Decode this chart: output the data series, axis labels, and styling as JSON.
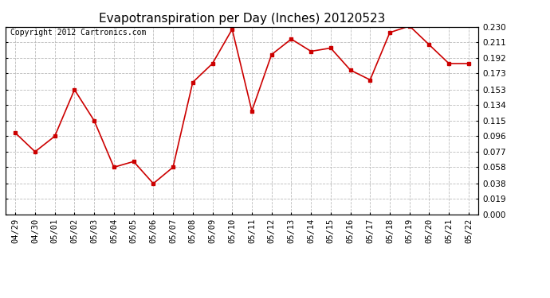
{
  "title": "Evapotranspiration per Day (Inches) 20120523",
  "copyright_text": "Copyright 2012 Cartronics.com",
  "dates": [
    "04/29",
    "04/30",
    "05/01",
    "05/02",
    "05/03",
    "05/04",
    "05/05",
    "05/06",
    "05/07",
    "05/08",
    "05/09",
    "05/10",
    "05/11",
    "05/12",
    "05/13",
    "05/14",
    "05/15",
    "05/16",
    "05/17",
    "05/18",
    "05/19",
    "05/20",
    "05/21",
    "05/22"
  ],
  "values": [
    0.1,
    0.077,
    0.096,
    0.153,
    0.115,
    0.058,
    0.065,
    0.038,
    0.058,
    0.162,
    0.185,
    0.227,
    0.127,
    0.196,
    0.215,
    0.2,
    0.204,
    0.177,
    0.165,
    0.223,
    0.231,
    0.208,
    0.185,
    0.185
  ],
  "line_color": "#cc0000",
  "marker": "s",
  "marker_size": 3,
  "marker_linewidth": 1.0,
  "ylim": [
    0.0,
    0.23
  ],
  "yticks": [
    0.0,
    0.019,
    0.038,
    0.058,
    0.077,
    0.096,
    0.115,
    0.134,
    0.153,
    0.173,
    0.192,
    0.211,
    0.23
  ],
  "background_color": "#ffffff",
  "grid_color": "#bbbbbb",
  "title_fontsize": 11,
  "copyright_fontsize": 7,
  "tick_fontsize": 7.5,
  "linewidth": 1.2
}
